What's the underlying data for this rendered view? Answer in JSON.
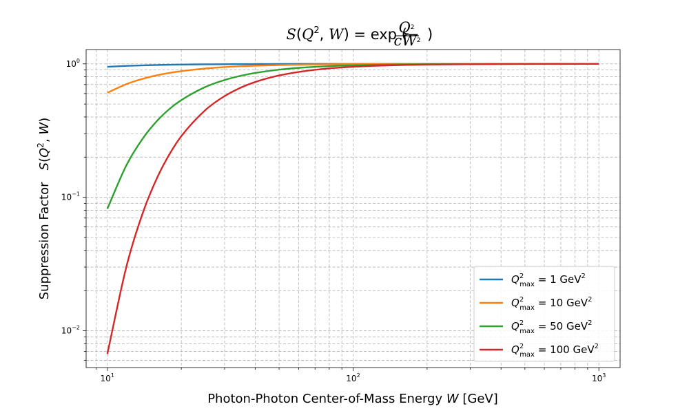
{
  "chart_data": {
    "type": "line",
    "title": "S(Q², W) = exp(−Q²/(cW²))",
    "title_parts": {
      "s": "S",
      "q": "Q",
      "w": "W",
      "exp": "exp",
      "c": "c",
      "two": "2"
    },
    "xlabel": "Photon-Photon Center-of-Mass Energy W [GeV]",
    "xlabel_parts": {
      "text": "Photon-Photon Center-of-Mass Energy",
      "var": "W",
      "unit": "[GeV]"
    },
    "ylabel": "Suppression Factor   S(Q², W)",
    "ylabel_parts": {
      "text": "Suppression Factor",
      "s": "S",
      "q": "Q",
      "w": "W"
    },
    "x_scale": "log",
    "y_scale": "log",
    "xlim": [
      8.2,
      1220
    ],
    "ylim": [
      0.0053,
      1.28
    ],
    "x_ticks": [
      10,
      100,
      1000
    ],
    "x_tick_labels": [
      {
        "base": "10",
        "exp": "1"
      },
      {
        "base": "10",
        "exp": "2"
      },
      {
        "base": "10",
        "exp": "3"
      }
    ],
    "y_ticks": [
      0.01,
      0.1,
      1
    ],
    "y_tick_labels": [
      {
        "base": "10",
        "exp": "−2"
      },
      {
        "base": "10",
        "exp": "−1"
      },
      {
        "base": "10",
        "exp": "0"
      }
    ],
    "grid": true,
    "legend_position": "lower-right",
    "x": [
      10,
      12,
      14,
      16,
      18,
      20,
      25,
      30,
      35,
      40,
      50,
      60,
      70,
      80,
      100,
      130,
      160,
      200,
      300,
      500,
      700,
      1000
    ],
    "series": [
      {
        "label_pre": "Q",
        "label_sub": "max",
        "label_sup": "2",
        "label_eq": " = 1 GeV",
        "label_unit_sup": "2",
        "color": "#1f77b4",
        "values": [
          0.951,
          0.966,
          0.975,
          0.981,
          0.985,
          0.988,
          0.992,
          0.994,
          0.996,
          0.997,
          0.998,
          0.999,
          0.999,
          0.999,
          1.0,
          1.0,
          1.0,
          1.0,
          1.0,
          1.0,
          1.0,
          1.0
        ]
      },
      {
        "label_pre": "Q",
        "label_sub": "max",
        "label_sup": "2",
        "label_eq": " = 10 GeV",
        "label_unit_sup": "2",
        "color": "#ff7f0e",
        "values": [
          0.607,
          0.707,
          0.775,
          0.823,
          0.857,
          0.882,
          0.923,
          0.946,
          0.96,
          0.969,
          0.98,
          0.986,
          0.99,
          0.992,
          0.995,
          0.997,
          0.998,
          0.999,
          0.999,
          1.0,
          1.0,
          1.0
        ]
      },
      {
        "label_pre": "Q",
        "label_sub": "max",
        "label_sup": "2",
        "label_eq": " = 50 GeV",
        "label_unit_sup": "2",
        "color": "#2ca02c",
        "values": [
          0.082,
          0.176,
          0.279,
          0.377,
          0.463,
          0.535,
          0.67,
          0.757,
          0.815,
          0.855,
          0.905,
          0.933,
          0.95,
          0.962,
          0.975,
          0.985,
          0.99,
          0.994,
          0.997,
          0.999,
          1.0,
          1.0
        ]
      },
      {
        "label_pre": "Q",
        "label_sub": "max",
        "label_sup": "2",
        "label_eq": " = 100 GeV",
        "label_unit_sup": "2",
        "color": "#d62728",
        "values": [
          0.0067,
          0.031,
          0.078,
          0.142,
          0.214,
          0.287,
          0.449,
          0.573,
          0.665,
          0.732,
          0.819,
          0.87,
          0.903,
          0.925,
          0.951,
          0.971,
          0.981,
          0.988,
          0.994,
          0.998,
          0.999,
          1.0
        ]
      }
    ]
  }
}
